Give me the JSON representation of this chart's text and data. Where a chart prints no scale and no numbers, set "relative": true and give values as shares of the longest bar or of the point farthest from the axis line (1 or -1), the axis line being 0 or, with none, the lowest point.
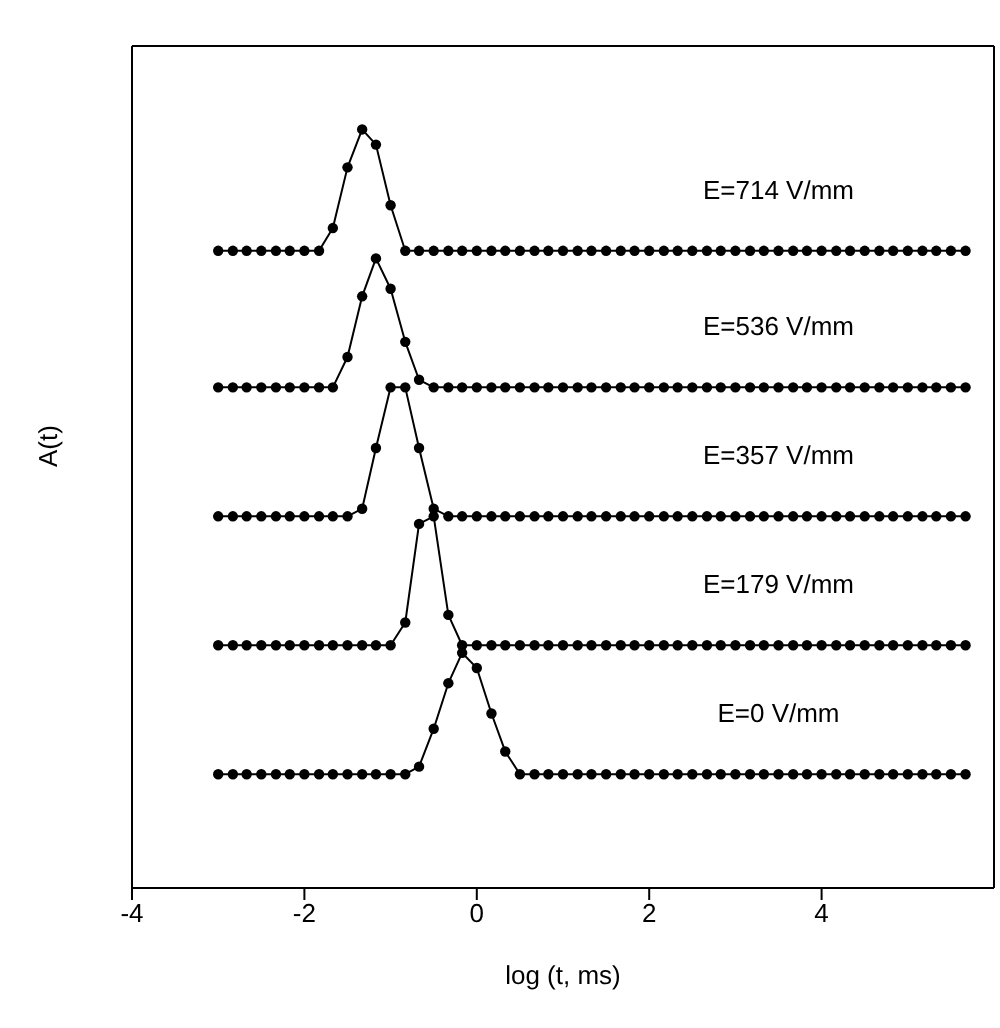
{
  "chart_data": {
    "type": "line",
    "xlabel": "log (t, ms)",
    "ylabel": "A(t)",
    "relative": true,
    "xlim": [
      -4,
      6
    ],
    "xticks": [
      -4,
      -2,
      0,
      2,
      4
    ],
    "grid": false,
    "legend": false,
    "marker": "circle",
    "line_style": "solid",
    "x": [
      -3,
      -2.83,
      -2.67,
      -2.5,
      -2.33,
      -2.17,
      -2,
      -1.83,
      -1.67,
      -1.5,
      -1.33,
      -1.17,
      -1,
      -0.83,
      -0.67,
      -0.5,
      -0.33,
      -0.17,
      0,
      0.17,
      0.33,
      0.5,
      0.67,
      0.83,
      1,
      1.17,
      1.33,
      1.5,
      1.67,
      1.83,
      2,
      2.17,
      2.33,
      2.5,
      2.67,
      2.83,
      3,
      3.17,
      3.33,
      3.5,
      3.67,
      3.83,
      4,
      4.17,
      4.33,
      4.5,
      4.67,
      4.83,
      5,
      5.17,
      5.33,
      5.5,
      5.67
    ],
    "series": [
      {
        "name": "E=714 V/mm",
        "color": "#000000",
        "values": [
          0.84,
          0.84,
          0.84,
          0.84,
          0.84,
          0.84,
          0.84,
          0.84,
          0.87,
          0.95,
          1,
          0.98,
          0.9,
          0.84,
          0.84,
          0.84,
          0.84,
          0.84,
          0.84,
          0.84,
          0.84,
          0.84,
          0.84,
          0.84,
          0.84,
          0.84,
          0.84,
          0.84,
          0.84,
          0.84,
          0.84,
          0.84,
          0.84,
          0.84,
          0.84,
          0.84,
          0.84,
          0.84,
          0.84,
          0.84,
          0.84,
          0.84,
          0.84,
          0.84,
          0.84,
          0.84,
          0.84,
          0.84,
          0.84,
          0.84,
          0.84,
          0.84,
          0.84
        ]
      },
      {
        "name": "E=536 V/mm",
        "color": "#000000",
        "values": [
          0.66,
          0.66,
          0.66,
          0.66,
          0.66,
          0.66,
          0.66,
          0.66,
          0.66,
          0.7,
          0.78,
          0.83,
          0.79,
          0.72,
          0.67,
          0.66,
          0.66,
          0.66,
          0.66,
          0.66,
          0.66,
          0.66,
          0.66,
          0.66,
          0.66,
          0.66,
          0.66,
          0.66,
          0.66,
          0.66,
          0.66,
          0.66,
          0.66,
          0.66,
          0.66,
          0.66,
          0.66,
          0.66,
          0.66,
          0.66,
          0.66,
          0.66,
          0.66,
          0.66,
          0.66,
          0.66,
          0.66,
          0.66,
          0.66,
          0.66,
          0.66,
          0.66,
          0.66
        ]
      },
      {
        "name": "E=357 V/mm",
        "color": "#000000",
        "values": [
          0.49,
          0.49,
          0.49,
          0.49,
          0.49,
          0.49,
          0.49,
          0.49,
          0.49,
          0.49,
          0.5,
          0.58,
          0.66,
          0.66,
          0.58,
          0.5,
          0.49,
          0.49,
          0.49,
          0.49,
          0.49,
          0.49,
          0.49,
          0.49,
          0.49,
          0.49,
          0.49,
          0.49,
          0.49,
          0.49,
          0.49,
          0.49,
          0.49,
          0.49,
          0.49,
          0.49,
          0.49,
          0.49,
          0.49,
          0.49,
          0.49,
          0.49,
          0.49,
          0.49,
          0.49,
          0.49,
          0.49,
          0.49,
          0.49,
          0.49,
          0.49,
          0.49,
          0.49
        ]
      },
      {
        "name": "E=179 V/mm",
        "color": "#000000",
        "values": [
          0.32,
          0.32,
          0.32,
          0.32,
          0.32,
          0.32,
          0.32,
          0.32,
          0.32,
          0.32,
          0.32,
          0.32,
          0.32,
          0.35,
          0.48,
          0.49,
          0.36,
          0.32,
          0.32,
          0.32,
          0.32,
          0.32,
          0.32,
          0.32,
          0.32,
          0.32,
          0.32,
          0.32,
          0.32,
          0.32,
          0.32,
          0.32,
          0.32,
          0.32,
          0.32,
          0.32,
          0.32,
          0.32,
          0.32,
          0.32,
          0.32,
          0.32,
          0.32,
          0.32,
          0.32,
          0.32,
          0.32,
          0.32,
          0.32,
          0.32,
          0.32,
          0.32,
          0.32
        ]
      },
      {
        "name": "E=0 V/mm",
        "color": "#000000",
        "values": [
          0.15,
          0.15,
          0.15,
          0.15,
          0.15,
          0.15,
          0.15,
          0.15,
          0.15,
          0.15,
          0.15,
          0.15,
          0.15,
          0.15,
          0.16,
          0.21,
          0.27,
          0.31,
          0.29,
          0.23,
          0.18,
          0.15,
          0.15,
          0.15,
          0.15,
          0.15,
          0.15,
          0.15,
          0.15,
          0.15,
          0.15,
          0.15,
          0.15,
          0.15,
          0.15,
          0.15,
          0.15,
          0.15,
          0.15,
          0.15,
          0.15,
          0.15,
          0.15,
          0.15,
          0.15,
          0.15,
          0.15,
          0.15,
          0.15,
          0.15,
          0.15,
          0.15,
          0.15
        ]
      }
    ]
  }
}
